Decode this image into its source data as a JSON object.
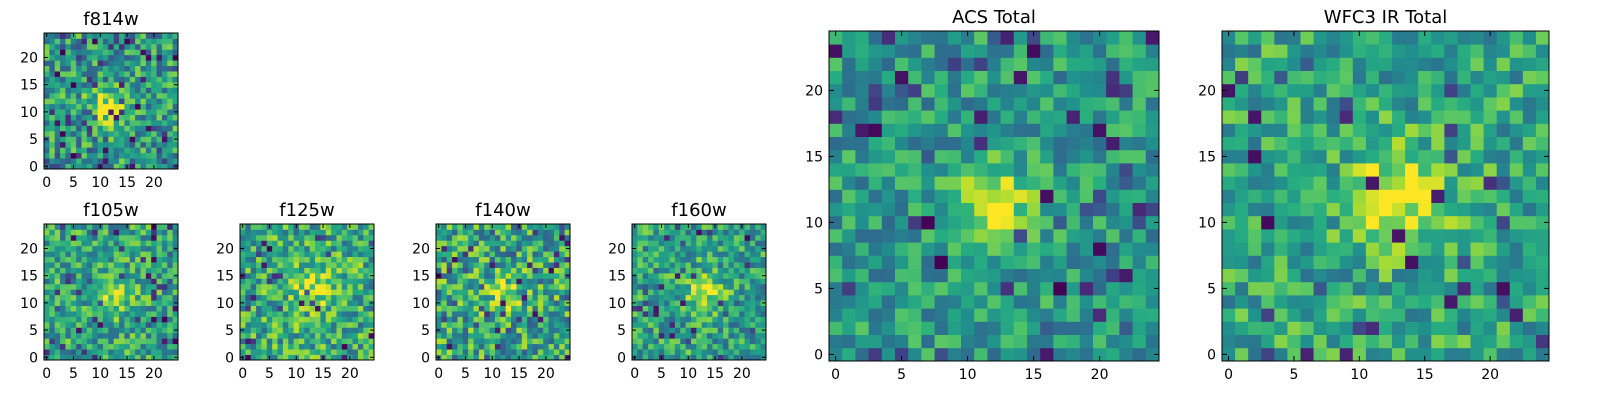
{
  "figure_title": "",
  "chart_data": [
    {
      "type": "heatmap",
      "title": "f814w",
      "size": 25,
      "xticks": [
        0,
        5,
        10,
        15,
        20
      ],
      "yticks": [
        0,
        5,
        10,
        15,
        20
      ],
      "xlim": [
        -0.5,
        24.5
      ],
      "ylim": [
        -0.5,
        24.5
      ],
      "colormap": "viridis",
      "seed": 11,
      "peak": [
        11,
        11
      ],
      "peak_strength": 0.35,
      "peak_width": 2.5,
      "noise": 0.55,
      "baseline": 0.55,
      "dark_frac": 0.12
    },
    {
      "type": "heatmap",
      "title": "f105w",
      "size": 25,
      "xticks": [
        0,
        5,
        10,
        15,
        20
      ],
      "yticks": [
        0,
        5,
        10,
        15,
        20
      ],
      "xlim": [
        -0.5,
        24.5
      ],
      "ylim": [
        -0.5,
        24.5
      ],
      "colormap": "viridis",
      "seed": 23,
      "peak": [
        12,
        11
      ],
      "peak_strength": 0.3,
      "peak_width": 2.5,
      "noise": 0.5,
      "baseline": 0.6,
      "dark_frac": 0.07
    },
    {
      "type": "heatmap",
      "title": "f125w",
      "size": 25,
      "xticks": [
        0,
        5,
        10,
        15,
        20
      ],
      "yticks": [
        0,
        5,
        10,
        15,
        20
      ],
      "xlim": [
        -0.5,
        24.5
      ],
      "ylim": [
        -0.5,
        24.5
      ],
      "colormap": "viridis",
      "seed": 37,
      "peak": [
        13,
        13
      ],
      "peak_strength": 0.25,
      "peak_width": 3,
      "noise": 0.55,
      "baseline": 0.62,
      "dark_frac": 0.05
    },
    {
      "type": "heatmap",
      "title": "f140w",
      "size": 25,
      "xticks": [
        0,
        5,
        10,
        15,
        20
      ],
      "yticks": [
        0,
        5,
        10,
        15,
        20
      ],
      "xlim": [
        -0.5,
        24.5
      ],
      "ylim": [
        -0.5,
        24.5
      ],
      "colormap": "viridis",
      "seed": 41,
      "peak": [
        12,
        12
      ],
      "peak_strength": 0.25,
      "peak_width": 2.5,
      "noise": 0.6,
      "baseline": 0.6,
      "dark_frac": 0.09
    },
    {
      "type": "heatmap",
      "title": "f160w",
      "size": 25,
      "xticks": [
        0,
        5,
        10,
        15,
        20
      ],
      "yticks": [
        0,
        5,
        10,
        15,
        20
      ],
      "xlim": [
        -0.5,
        24.5
      ],
      "ylim": [
        -0.5,
        24.5
      ],
      "colormap": "viridis",
      "seed": 53,
      "peak": [
        13,
        12
      ],
      "peak_strength": 0.35,
      "peak_width": 2.5,
      "noise": 0.5,
      "baseline": 0.58,
      "dark_frac": 0.07
    },
    {
      "type": "heatmap",
      "title": "ACS Total",
      "size": 25,
      "xticks": [
        0,
        5,
        10,
        15,
        20
      ],
      "yticks": [
        0,
        5,
        10,
        15,
        20
      ],
      "xlim": [
        -0.5,
        24.5
      ],
      "ylim": [
        -0.5,
        24.5
      ],
      "colormap": "viridis",
      "seed": 67,
      "peak": [
        12,
        11
      ],
      "peak_strength": 0.4,
      "peak_width": 2.2,
      "noise": 0.4,
      "baseline": 0.55,
      "dark_frac": 0.07
    },
    {
      "type": "heatmap",
      "title": "WFC3 IR Total",
      "size": 25,
      "xticks": [
        0,
        5,
        10,
        15,
        20
      ],
      "yticks": [
        0,
        5,
        10,
        15,
        20
      ],
      "xlim": [
        -0.5,
        24.5
      ],
      "ylim": [
        -0.5,
        24.5
      ],
      "colormap": "viridis",
      "seed": 79,
      "peak": [
        13,
        12
      ],
      "peak_strength": 0.35,
      "peak_width": 2.6,
      "noise": 0.45,
      "baseline": 0.6,
      "dark_frac": 0.06
    }
  ]
}
